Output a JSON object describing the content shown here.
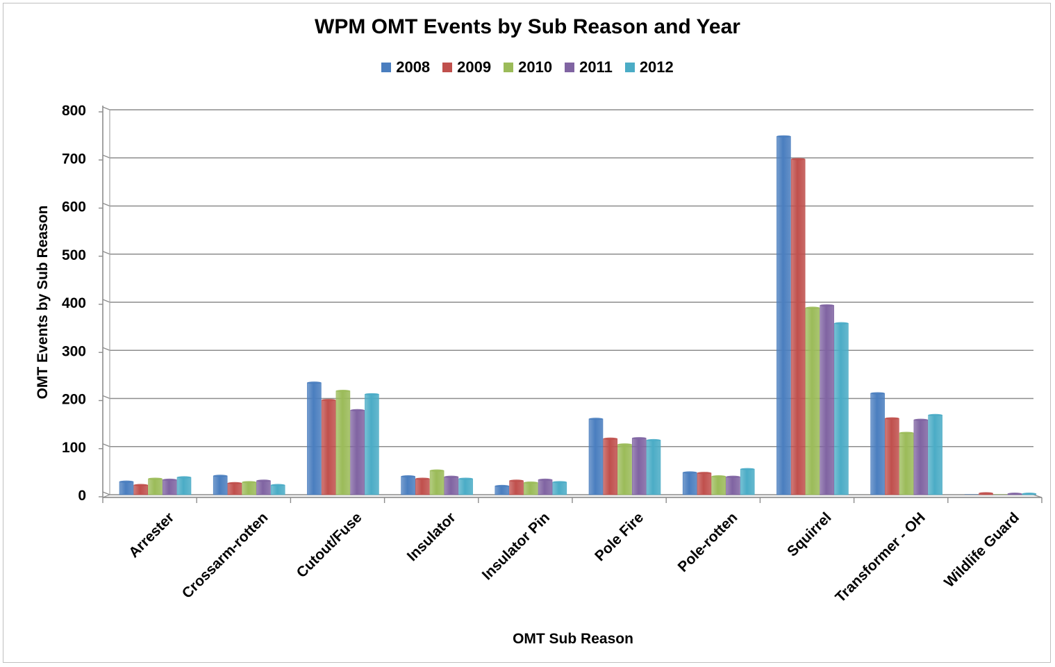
{
  "chart_data": {
    "type": "bar",
    "title": "WPM OMT Events by Sub Reason and Year",
    "xlabel": "OMT Sub Reason",
    "ylabel": "OMT Events by Sub Reason",
    "ylim": [
      0,
      800
    ],
    "yticks": [
      0,
      100,
      200,
      300,
      400,
      500,
      600,
      700,
      800
    ],
    "grid": true,
    "legend_position": "top",
    "categories": [
      "Arrester",
      "Crossarm-rotten",
      "Cutout/Fuse",
      "Insulator",
      "Insulator Pin",
      "Pole Fire",
      "Pole-rotten",
      "Squirrel",
      "Transformer - OH",
      "Wildlife Guard"
    ],
    "series": [
      {
        "name": "2008",
        "color": "#4a7ebf",
        "values": [
          27,
          39,
          232,
          38,
          18,
          157,
          46,
          742,
          210,
          0
        ]
      },
      {
        "name": "2009",
        "color": "#c0504d",
        "values": [
          20,
          24,
          196,
          33,
          29,
          116,
          45,
          695,
          158,
          3
        ]
      },
      {
        "name": "2010",
        "color": "#9bbb59",
        "values": [
          33,
          26,
          215,
          50,
          25,
          104,
          38,
          387,
          128,
          0
        ]
      },
      {
        "name": "2011",
        "color": "#8064a2",
        "values": [
          31,
          29,
          175,
          37,
          31,
          117,
          37,
          392,
          155,
          2
        ]
      },
      {
        "name": "2012",
        "color": "#4bacc6",
        "values": [
          36,
          20,
          208,
          33,
          26,
          113,
          53,
          355,
          165,
          2
        ]
      }
    ]
  }
}
